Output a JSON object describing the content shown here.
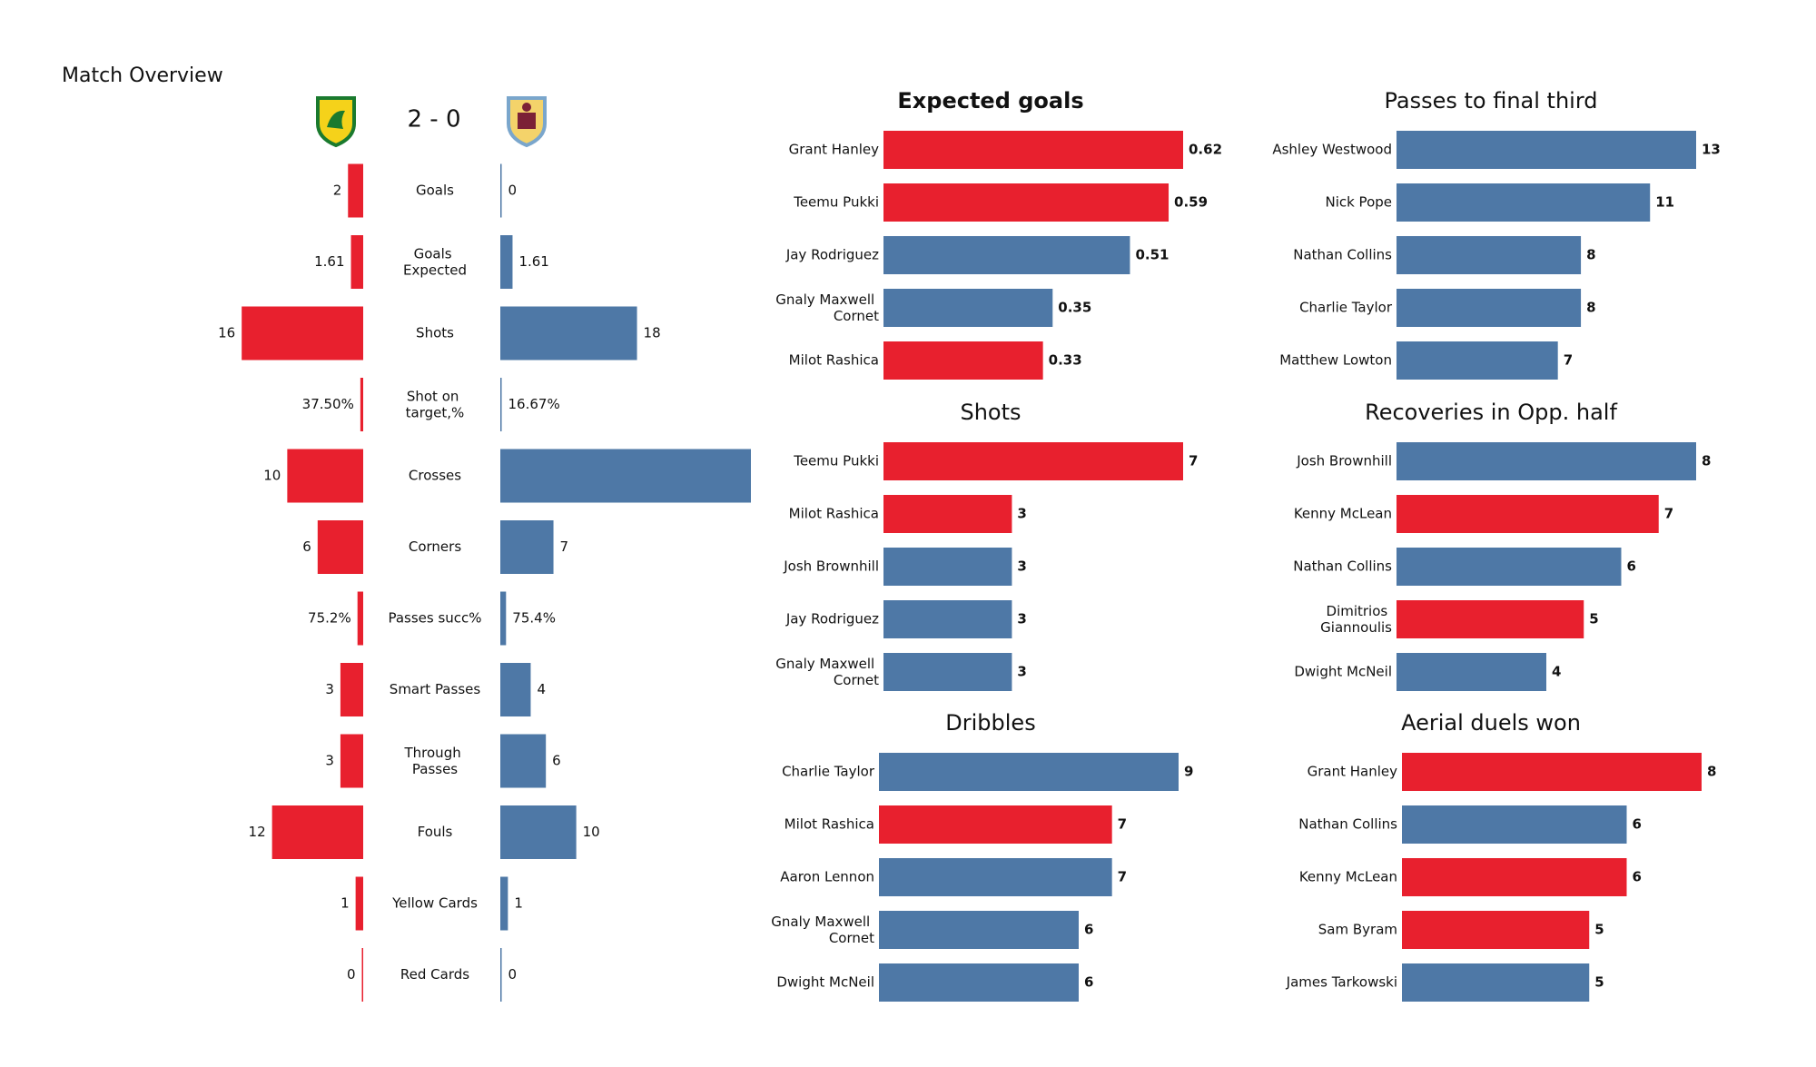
{
  "chart_data": [
    {
      "type": "diverging-bar",
      "title": "Match Overview",
      "score": "2 - 0",
      "categories": [
        "Goals",
        "Goals Expected",
        "Shots",
        "Shot on target,%",
        "Crosses",
        "Corners",
        "Passes succ%",
        "Smart Passes",
        "Through Passes",
        "Fouls",
        "Yellow Cards",
        "Red Cards"
      ],
      "series": [
        {
          "color": "#e8202e",
          "values": [
            2,
            1.61,
            16,
            0.375,
            10,
            6,
            0.752,
            3,
            3,
            12,
            1,
            0
          ],
          "value_labels": [
            "2",
            "1.61",
            "16",
            "37.50%",
            "10",
            "6",
            "75.2%",
            "3",
            "3",
            "12",
            "1",
            "0"
          ]
        },
        {
          "color": "#4e78a6",
          "values": [
            0,
            1.61,
            18,
            0.1667,
            33,
            7,
            0.754,
            4,
            6,
            10,
            1,
            0
          ],
          "value_labels": [
            "0",
            "1.61",
            "18",
            "16.67%",
            null,
            "7",
            "75.4%",
            "4",
            "6",
            "10",
            "1",
            "0"
          ]
        }
      ]
    },
    {
      "type": "hbar",
      "title": "Expected goals",
      "categories": [
        "Grant Hanley",
        "Teemu Pukki",
        "Jay Rodriguez",
        "Gnaly Maxwell Cornet",
        "Milot Rashica"
      ],
      "values": [
        0.62,
        0.59,
        0.51,
        0.35,
        0.33
      ],
      "colors": [
        "#e8202e",
        "#e8202e",
        "#4e78a6",
        "#4e78a6",
        "#e8202e"
      ]
    },
    {
      "type": "hbar",
      "title": "Passes to final third",
      "categories": [
        "Ashley Westwood",
        "Nick Pope",
        "Nathan Collins",
        "Charlie Taylor",
        "Matthew Lowton"
      ],
      "values": [
        13,
        11,
        8,
        8,
        7
      ],
      "colors": [
        "#4e78a6",
        "#4e78a6",
        "#4e78a6",
        "#4e78a6",
        "#4e78a6"
      ]
    },
    {
      "type": "hbar",
      "title": "Shots",
      "categories": [
        "Teemu Pukki",
        "Milot Rashica",
        "Josh Brownhill",
        "Jay Rodriguez",
        "Gnaly Maxwell Cornet"
      ],
      "values": [
        7,
        3,
        3,
        3,
        3
      ],
      "colors": [
        "#e8202e",
        "#e8202e",
        "#4e78a6",
        "#4e78a6",
        "#4e78a6"
      ]
    },
    {
      "type": "hbar",
      "title": "Recoveries in Opp. half",
      "categories": [
        "Josh Brownhill",
        "Kenny McLean",
        "Nathan Collins",
        "Dimitrios Giannoulis",
        "Dwight McNeil"
      ],
      "values": [
        8,
        7,
        6,
        5,
        4
      ],
      "colors": [
        "#4e78a6",
        "#e8202e",
        "#4e78a6",
        "#e8202e",
        "#4e78a6"
      ]
    },
    {
      "type": "hbar",
      "title": "Dribbles",
      "categories": [
        "Charlie Taylor",
        "Milot Rashica",
        "Aaron  Lennon",
        "Gnaly Maxwell Cornet",
        "Dwight McNeil"
      ],
      "values": [
        9,
        7,
        7,
        6,
        6
      ],
      "colors": [
        "#4e78a6",
        "#e8202e",
        "#4e78a6",
        "#4e78a6",
        "#4e78a6"
      ]
    },
    {
      "type": "hbar",
      "title": "Aerial duels won",
      "categories": [
        "Grant Hanley",
        "Nathan Collins",
        "Kenny McLean",
        "Sam Byram",
        "James  Tarkowski"
      ],
      "values": [
        8,
        6,
        6,
        5,
        5
      ],
      "colors": [
        "#e8202e",
        "#4e78a6",
        "#e8202e",
        "#e8202e",
        "#4e78a6"
      ]
    }
  ]
}
